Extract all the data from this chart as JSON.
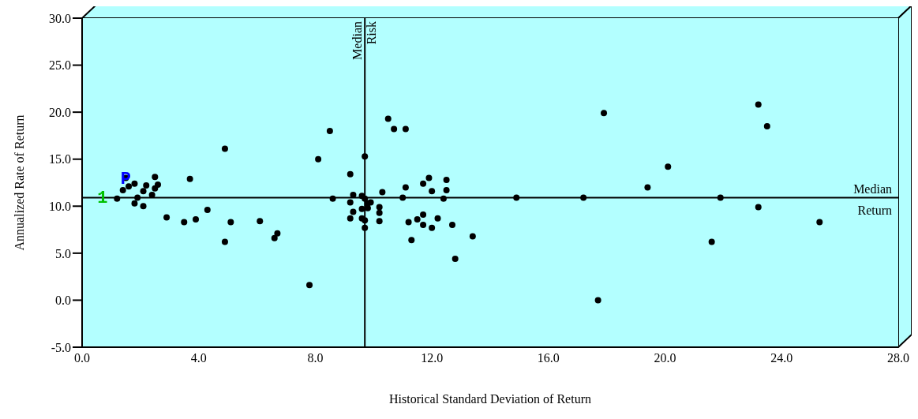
{
  "chart_data": {
    "type": "scatter",
    "xlabel": "Historical Standard Deviation of Return",
    "ylabel": "Annualized Rate of Return",
    "xlim": [
      0,
      28
    ],
    "xticks": [
      {
        "value": 0,
        "label": "0.0"
      },
      {
        "value": 4,
        "label": "4.0"
      },
      {
        "value": 8,
        "label": "8.0"
      },
      {
        "value": 12,
        "label": "12.0"
      },
      {
        "value": 16,
        "label": "16.0"
      },
      {
        "value": 20,
        "label": "20.0"
      },
      {
        "value": 24,
        "label": "24.0"
      },
      {
        "value": 28,
        "label": "28.0"
      }
    ],
    "ylim": [
      -5,
      30
    ],
    "yticks": [
      {
        "value": -5,
        "label": "-5.0"
      },
      {
        "value": 0,
        "label": "0.0"
      },
      {
        "value": 5,
        "label": "5.0"
      },
      {
        "value": 10,
        "label": "10.0"
      },
      {
        "value": 15,
        "label": "15.0"
      },
      {
        "value": 20,
        "label": "20.0"
      },
      {
        "value": 25,
        "label": "25.0"
      },
      {
        "value": 30,
        "label": "30.0"
      }
    ],
    "grid": false,
    "marker": "circle",
    "ref_lines": [
      {
        "axis": "x",
        "value": 9.7,
        "label": "Median Risk",
        "color": "#000000"
      },
      {
        "axis": "y",
        "value": 10.9,
        "label": "Median Return",
        "color": "#000000"
      }
    ],
    "series": [
      {
        "color": "#000000",
        "x": [
          1.2,
          1.4,
          1.6,
          1.8,
          1.5,
          1.9,
          1.8,
          2.1,
          2.1,
          2.2,
          2.4,
          2.5,
          2.6,
          2.5,
          3.7,
          4.9,
          2.9,
          3.5,
          3.9,
          4.3,
          5.1,
          4.9,
          6.1,
          6.6,
          6.7,
          8.5,
          8.1,
          9.2,
          9.7,
          8.6,
          9.3,
          9.2,
          9.3,
          9.2,
          9.6,
          9.8,
          9.9,
          9.6,
          9.8,
          9.6,
          9.7,
          9.7,
          7.8,
          9.7,
          10.5,
          10.7,
          11.1,
          10.3,
          11.1,
          11.0,
          11.7,
          11.9,
          12.5,
          12.0,
          12.5,
          12.4,
          10.2,
          10.2,
          10.2,
          11.2,
          11.5,
          11.7,
          11.7,
          12.0,
          12.2,
          12.7,
          11.3,
          13.4,
          12.8,
          17.9,
          14.9,
          17.2,
          19.4,
          23.2,
          23.5,
          20.1,
          21.9,
          23.2,
          25.3,
          21.6,
          17.7
        ],
        "values": [
          10.8,
          11.7,
          12.1,
          12.4,
          13.0,
          10.9,
          10.3,
          10.0,
          11.6,
          12.2,
          11.2,
          11.9,
          12.3,
          13.1,
          12.9,
          16.1,
          8.8,
          8.3,
          8.6,
          9.6,
          8.3,
          6.2,
          8.4,
          6.6,
          7.1,
          18.0,
          15.0,
          13.4,
          15.3,
          10.8,
          11.2,
          10.4,
          9.4,
          8.7,
          11.1,
          10.3,
          10.4,
          9.7,
          9.8,
          8.7,
          8.5,
          7.7,
          1.6,
          10.8,
          19.3,
          18.2,
          18.2,
          11.5,
          12.0,
          10.9,
          12.4,
          13.0,
          12.8,
          11.6,
          11.7,
          10.8,
          9.9,
          9.3,
          8.4,
          8.3,
          8.6,
          9.1,
          8.0,
          7.7,
          8.7,
          8.0,
          6.4,
          6.8,
          4.4,
          19.9,
          10.9,
          10.9,
          12.0,
          20.8,
          18.5,
          14.2,
          10.9,
          9.9,
          8.3,
          6.2,
          0.0
        ]
      }
    ],
    "annotations": [
      {
        "text": "P",
        "x": 1.5,
        "y": 12.8
      },
      {
        "text": "1",
        "x": 0.7,
        "y": 10.8
      }
    ]
  }
}
